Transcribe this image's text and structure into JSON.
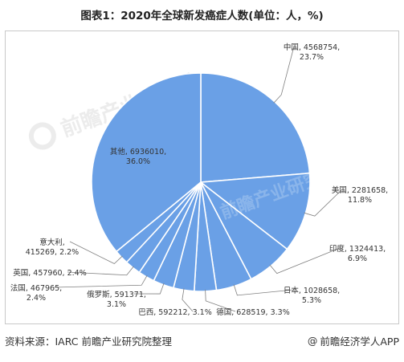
{
  "title": "图表1：2020年全球新发癌症人数(单位：人，%)",
  "footer": {
    "source": "资料来源：IARC 前瞻产业研究院整理",
    "copyright_symbol": "@",
    "brand": "前瞻经济学人APP"
  },
  "watermark": {
    "text": "前瞻产业研究院"
  },
  "colors": {
    "slice": "#6aa0e6",
    "slice_border": "#ffffff",
    "leader": "#7f7f7f"
  },
  "chart_data": {
    "type": "pie",
    "title": "",
    "slices": [
      {
        "label": "中国",
        "value": 4568754,
        "percent": "23.7%"
      },
      {
        "label": "美国",
        "value": 2281658,
        "percent": "11.8%"
      },
      {
        "label": "印度",
        "value": 1324413,
        "percent": "6.9%"
      },
      {
        "label": "日本",
        "value": 1028658,
        "percent": "5.3%"
      },
      {
        "label": "德国",
        "value": 628519,
        "percent": "3.3%"
      },
      {
        "label": "巴西",
        "value": 592212,
        "percent": "3.1%"
      },
      {
        "label": "俄罗斯",
        "value": 591371,
        "percent": "3.1%"
      },
      {
        "label": "法国",
        "value": 467965,
        "percent": "2.4%"
      },
      {
        "label": "英国",
        "value": 457960,
        "percent": "2.4%"
      },
      {
        "label": "意大利",
        "value": 415269,
        "percent": "2.2%"
      },
      {
        "label": "其他",
        "value": 6936010,
        "percent": "36.0%"
      }
    ],
    "legend": "none",
    "grid": false
  }
}
